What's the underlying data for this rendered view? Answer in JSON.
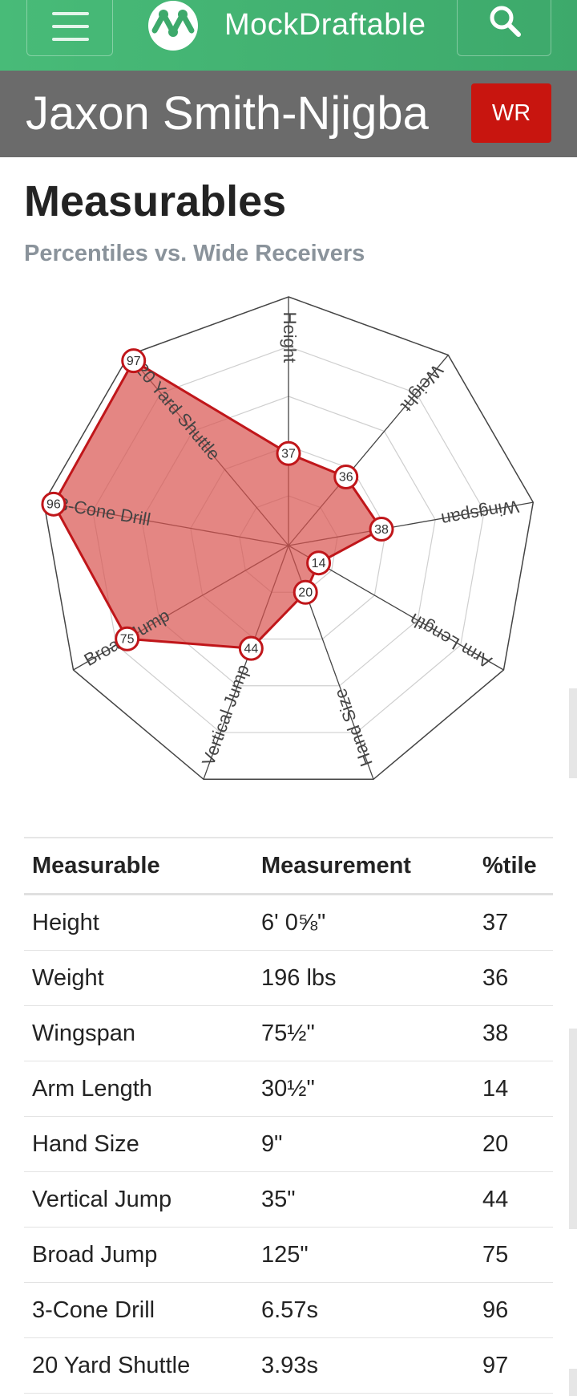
{
  "app": {
    "brand": "MockDraftable"
  },
  "player": {
    "name": "Jaxon Smith-Njigba",
    "position": "WR"
  },
  "section": {
    "title": "Measurables",
    "subtitle": "Percentiles vs. Wide Receivers"
  },
  "icons": {
    "menu": "hamburger-menu-icon",
    "logo": "mockdraftable-logo-icon",
    "search": "search-icon"
  },
  "colors": {
    "header": "#48bb78",
    "position_badge": "#c8150f",
    "radar_fill": "#d9534f",
    "radar_stroke": "#c0161a"
  },
  "chart_data": {
    "type": "radar",
    "axes": [
      "Height",
      "Weight",
      "Wingspan",
      "Arm Length",
      "Hand Size",
      "Vertical Jump",
      "Broad Jump",
      "3-Cone Drill",
      "20 Yard Shuttle"
    ],
    "values": [
      37,
      36,
      38,
      14,
      20,
      44,
      75,
      96,
      97
    ],
    "range": [
      0,
      100
    ],
    "grid": true
  },
  "table": {
    "headers": [
      "Measurable",
      "Measurement",
      "%tile"
    ],
    "rows": [
      [
        "Height",
        "6' 0⅝\"",
        "37"
      ],
      [
        "Weight",
        "196 lbs",
        "36"
      ],
      [
        "Wingspan",
        "75½\"",
        "38"
      ],
      [
        "Arm Length",
        "30½\"",
        "14"
      ],
      [
        "Hand Size",
        "9\"",
        "20"
      ],
      [
        "Vertical Jump",
        "35\"",
        "44"
      ],
      [
        "Broad Jump",
        "125\"",
        "75"
      ],
      [
        "3-Cone Drill",
        "6.57s",
        "96"
      ],
      [
        "20 Yard Shuttle",
        "3.93s",
        "97"
      ]
    ]
  }
}
